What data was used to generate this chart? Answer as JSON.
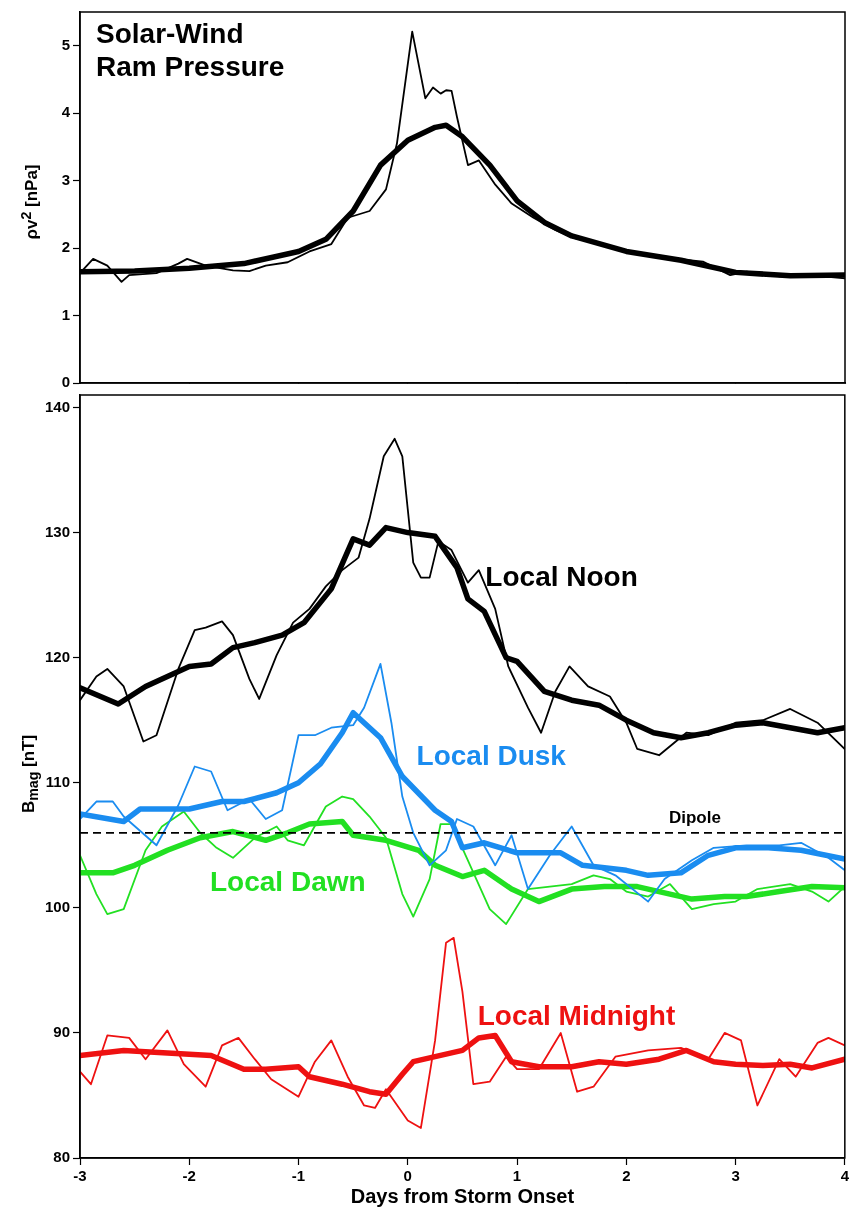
{
  "chart_data": [
    {
      "type": "line",
      "title": "Solar-Wind Ram Pressure",
      "ylabel": "ρv$^{2}$  [nPa]",
      "xlim": [
        -3,
        4
      ],
      "xticks": [
        -3,
        -2,
        -1,
        0,
        1,
        2,
        3,
        4
      ],
      "ylim": [
        0,
        5.5
      ],
      "yticks": [
        0,
        1,
        2,
        3,
        4,
        5
      ],
      "grid": false,
      "tick_labels": "y",
      "series": [
        {
          "color": "#000000",
          "x": [
            -3,
            -2.88,
            -2.75,
            -2.62,
            -2.55,
            -2.3,
            -2.1,
            -2.02,
            -1.85,
            -1.6,
            -1.45,
            -1.3,
            -1.1,
            -0.9,
            -0.7,
            -0.55,
            -0.35,
            -0.2,
            -0.1,
            0.04,
            0.16,
            0.23,
            0.3,
            0.35,
            0.4,
            0.45,
            0.55,
            0.65,
            0.8,
            0.95,
            1.15,
            1.35,
            1.5,
            1.8,
            2,
            2.4,
            2.7,
            2.95,
            3.1,
            3.4,
            3.6,
            3.8,
            4
          ],
          "values": [
            1.63,
            1.84,
            1.74,
            1.5,
            1.6,
            1.63,
            1.77,
            1.84,
            1.74,
            1.67,
            1.66,
            1.74,
            1.79,
            1.95,
            2.06,
            2.45,
            2.55,
            2.87,
            3.55,
            5.21,
            4.22,
            4.38,
            4.29,
            4.34,
            4.33,
            3.94,
            3.23,
            3.3,
            2.94,
            2.66,
            2.45,
            2.27,
            2.16,
            2.04,
            1.95,
            1.85,
            1.8,
            1.6,
            1.65,
            1.58,
            1.61,
            1.58,
            1.55
          ]
        },
        {
          "color": "#000000",
          "x": [
            -3,
            -2.5,
            -2,
            -1.5,
            -1,
            -0.75,
            -0.5,
            -0.25,
            0,
            0.25,
            0.35,
            0.5,
            0.75,
            1,
            1.25,
            1.5,
            2,
            2.5,
            3,
            3.5,
            4
          ],
          "values": [
            1.65,
            1.66,
            1.7,
            1.77,
            1.95,
            2.13,
            2.55,
            3.23,
            3.6,
            3.79,
            3.82,
            3.65,
            3.23,
            2.7,
            2.38,
            2.18,
            1.95,
            1.82,
            1.64,
            1.59,
            1.6
          ]
        }
      ]
    },
    {
      "type": "line",
      "xlabel": "Days from Storm Onset",
      "ylabel": "B$_{mag}$  [nT]",
      "xlim": [
        -3,
        4
      ],
      "xticks": [
        -3,
        -2,
        -1,
        0,
        1,
        2,
        3,
        4
      ],
      "ylim": [
        80,
        141
      ],
      "yticks": [
        80,
        90,
        100,
        110,
        120,
        130,
        140
      ],
      "grid": false,
      "ref_lines": [
        {
          "axis": "y",
          "value": 106,
          "label": "Dipole",
          "color": "#000000",
          "line_style": "dashed"
        }
      ],
      "series": [
        {
          "color": "#000000",
          "x": [
            -3,
            -2.85,
            -2.75,
            -2.6,
            -2.42,
            -2.3,
            -2.1,
            -1.95,
            -1.85,
            -1.7,
            -1.6,
            -1.45,
            -1.36,
            -1.2,
            -1.05,
            -0.9,
            -0.75,
            -0.6,
            -0.45,
            -0.35,
            -0.22,
            -0.12,
            -0.05,
            0.05,
            0.12,
            0.2,
            0.28,
            0.4,
            0.55,
            0.65,
            0.8,
            0.92,
            1.1,
            1.22,
            1.35,
            1.48,
            1.65,
            1.85,
            2,
            2.1,
            2.3,
            2.55,
            2.75,
            3,
            3.25,
            3.5,
            3.75,
            4
          ],
          "values": [
            116.6,
            118.5,
            119.1,
            117.7,
            113.3,
            113.8,
            119.1,
            122.2,
            122.4,
            122.9,
            121.8,
            118.3,
            116.7,
            120.2,
            122.8,
            123.9,
            125.7,
            127,
            128,
            131.1,
            136.1,
            137.5,
            136.1,
            127.6,
            126.4,
            126.4,
            129.3,
            128.6,
            126,
            127,
            123.9,
            119.3,
            116,
            114,
            117.3,
            119.3,
            117.7,
            116.9,
            114.8,
            112.7,
            112.2,
            114,
            113.8,
            114.8,
            115,
            115.9,
            114.8,
            112.7
          ]
        },
        {
          "name": "Local Noon",
          "color": "#000000",
          "x": [
            -3,
            -2.65,
            -2.4,
            -2.15,
            -2,
            -1.8,
            -1.6,
            -1.4,
            -1.15,
            -0.95,
            -0.7,
            -0.5,
            -0.35,
            -0.2,
            0,
            0.25,
            0.45,
            0.55,
            0.7,
            0.9,
            1,
            1.25,
            1.5,
            1.75,
            2,
            2.25,
            2.5,
            2.75,
            3,
            3.25,
            3.5,
            3.75,
            4
          ],
          "values": [
            117.6,
            116.3,
            117.7,
            118.7,
            119.3,
            119.5,
            120.8,
            121.2,
            121.8,
            122.8,
            125.5,
            129.5,
            129,
            130.4,
            130,
            129.7,
            127.2,
            124.7,
            123.7,
            120,
            119.7,
            117.3,
            116.6,
            116.2,
            115,
            114,
            113.6,
            114,
            114.6,
            114.8,
            114.4,
            114,
            114.4
          ]
        },
        {
          "color": "#1a8cf0",
          "x": [
            -3,
            -2.85,
            -2.7,
            -2.6,
            -2.3,
            -2.1,
            -1.95,
            -1.8,
            -1.65,
            -1.45,
            -1.3,
            -1.15,
            -1,
            -0.85,
            -0.7,
            -0.5,
            -0.4,
            -0.25,
            -0.15,
            -0.05,
            0.05,
            0.2,
            0.35,
            0.45,
            0.6,
            0.8,
            0.95,
            1.1,
            1.3,
            1.5,
            1.7,
            1.9,
            2.2,
            2.35,
            2.6,
            2.8,
            3.1,
            3.4,
            3.6,
            3.85,
            4
          ],
          "values": [
            107.1,
            108.5,
            108.5,
            107.3,
            105,
            108.2,
            111.3,
            110.9,
            107.8,
            108.7,
            107.1,
            107.8,
            113.8,
            113.8,
            114.4,
            114.6,
            116,
            119.5,
            114.8,
            108.9,
            106,
            103.4,
            104.6,
            107.1,
            106.5,
            103.4,
            105.8,
            101.5,
            104.2,
            106.5,
            103.4,
            102.6,
            100.5,
            102.3,
            103.8,
            104.8,
            105,
            105,
            105.2,
            104,
            103
          ]
        },
        {
          "name": "Local Dusk",
          "color": "#1a8cf0",
          "x": [
            -3,
            -2.6,
            -2.45,
            -2,
            -1.7,
            -1.5,
            -1.2,
            -1,
            -0.8,
            -0.6,
            -0.5,
            -0.4,
            -0.25,
            -0.05,
            0.25,
            0.4,
            0.5,
            0.7,
            1,
            1.4,
            1.6,
            2,
            2.2,
            2.5,
            2.75,
            3,
            3.3,
            3.6,
            4
          ],
          "values": [
            107.5,
            106.9,
            107.9,
            107.9,
            108.5,
            108.5,
            109.2,
            110,
            111.5,
            114,
            115.6,
            114.8,
            113.6,
            110.5,
            107.8,
            106.9,
            104.8,
            105.2,
            104.4,
            104.4,
            103.4,
            103,
            102.6,
            102.8,
            104.2,
            104.8,
            104.8,
            104.6,
            103.9
          ]
        },
        {
          "color": "#22e022",
          "x": [
            -3,
            -2.85,
            -2.75,
            -2.6,
            -2.4,
            -2.25,
            -2.05,
            -1.9,
            -1.75,
            -1.6,
            -1.4,
            -1.2,
            -1.1,
            -0.95,
            -0.75,
            -0.6,
            -0.5,
            -0.35,
            -0.2,
            -0.05,
            0.05,
            0.2,
            0.3,
            0.4,
            0.55,
            0.75,
            0.9,
            1.1,
            1.3,
            1.5,
            1.7,
            1.85,
            2,
            2.2,
            2.4,
            2.6,
            2.8,
            3,
            3.2,
            3.5,
            3.7,
            3.85,
            4
          ],
          "values": [
            104.2,
            101.1,
            99.5,
            99.9,
            104.6,
            106.5,
            107.7,
            106,
            104.8,
            104,
            105.6,
            106.5,
            105.4,
            105,
            108.1,
            108.9,
            108.7,
            107.3,
            105.6,
            101.1,
            99.3,
            102.3,
            106.7,
            106.7,
            103.8,
            99.9,
            98.7,
            101.5,
            101.7,
            101.9,
            102.6,
            102.3,
            101.3,
            100.9,
            101.9,
            99.9,
            100.3,
            100.5,
            101.5,
            101.9,
            101.3,
            100.5,
            101.7
          ]
        },
        {
          "name": "Local Dawn",
          "color": "#22e022",
          "x": [
            -3,
            -2.7,
            -2.5,
            -2.2,
            -1.9,
            -1.6,
            -1.3,
            -1.1,
            -0.9,
            -0.6,
            -0.5,
            -0.2,
            0.1,
            0.25,
            0.5,
            0.7,
            0.95,
            1.2,
            1.5,
            1.8,
            2.1,
            2.3,
            2.6,
            2.9,
            3.1,
            3.4,
            3.7,
            4
          ],
          "values": [
            102.8,
            102.8,
            103.4,
            104.6,
            105.6,
            106.1,
            105.4,
            106,
            106.7,
            106.9,
            105.8,
            105.4,
            104.6,
            103.4,
            102.5,
            103,
            101.5,
            100.5,
            101.5,
            101.7,
            101.7,
            101.3,
            100.7,
            100.9,
            100.9,
            101.3,
            101.7,
            101.6
          ]
        },
        {
          "color": "#ee1111",
          "x": [
            -3,
            -2.9,
            -2.75,
            -2.55,
            -2.4,
            -2.2,
            -2.05,
            -1.85,
            -1.7,
            -1.55,
            -1.4,
            -1.25,
            -1,
            -0.85,
            -0.7,
            -0.55,
            -0.4,
            -0.3,
            -0.2,
            0,
            0.12,
            0.25,
            0.35,
            0.42,
            0.5,
            0.6,
            0.75,
            0.9,
            1,
            1.2,
            1.4,
            1.55,
            1.7,
            1.9,
            2.2,
            2.5,
            2.75,
            2.9,
            3.05,
            3.2,
            3.4,
            3.55,
            3.75,
            3.85,
            4
          ],
          "values": [
            86.9,
            85.9,
            89.8,
            89.6,
            87.9,
            90.2,
            87.5,
            85.7,
            89,
            89.6,
            87.9,
            86.3,
            84.9,
            87.7,
            89.4,
            86.5,
            84.2,
            84,
            85.5,
            83,
            82.4,
            89.4,
            97.2,
            97.6,
            93.3,
            85.9,
            86.1,
            88.1,
            87.1,
            87.1,
            90,
            85.3,
            85.7,
            88.1,
            88.6,
            88.8,
            87.9,
            90,
            89.4,
            84.2,
            87.9,
            86.5,
            89.2,
            89.6,
            89
          ]
        },
        {
          "name": "Local Midnight",
          "color": "#ee1111",
          "x": [
            -3,
            -2.6,
            -2.2,
            -1.8,
            -1.5,
            -1.3,
            -1,
            -0.9,
            -0.6,
            -0.35,
            -0.2,
            -0.05,
            0.05,
            0.3,
            0.5,
            0.65,
            0.8,
            0.95,
            1.2,
            1.5,
            1.75,
            2,
            2.3,
            2.55,
            2.8,
            3,
            3.25,
            3.5,
            3.7,
            4
          ],
          "values": [
            88.2,
            88.6,
            88.4,
            88.2,
            87.1,
            87.1,
            87.3,
            86.5,
            85.9,
            85.3,
            85.1,
            86.7,
            87.7,
            88.2,
            88.6,
            89.6,
            89.8,
            87.7,
            87.3,
            87.3,
            87.7,
            87.5,
            87.9,
            88.6,
            87.7,
            87.5,
            87.4,
            87.5,
            87.2,
            87.9
          ]
        }
      ]
    }
  ]
}
